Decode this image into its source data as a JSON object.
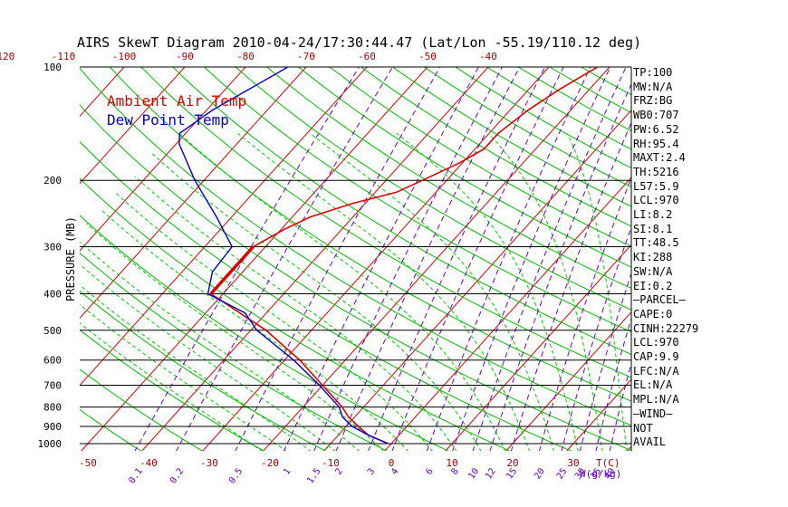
{
  "chart_data": {
    "type": "line",
    "title": "AIRS SkewT Diagram 2010-04-24/17:30:44.47 (Lat/Lon -55.19/110.12 deg)",
    "ylabel": "PRESSURE (MB)",
    "pressure_ticks": [
      100,
      200,
      300,
      400,
      500,
      600,
      700,
      800,
      900,
      1000
    ],
    "bottom_temp_ticks": [
      -50,
      -40,
      -30,
      -20,
      -10,
      0,
      10,
      20,
      30
    ],
    "bottom_temp_unit": "T(C)",
    "top_temp_ticks": [
      -120,
      -110,
      -100,
      -90,
      -80,
      -70,
      -60,
      -50,
      -40
    ],
    "mixing_ratio_ticks": [
      "0.1",
      "0.2",
      "0.5",
      "1",
      "1.5",
      "2",
      "3",
      "4",
      "6",
      "8",
      "10",
      "12",
      "15",
      "20",
      "25",
      "30",
      "35",
      "40"
    ],
    "mixing_ratio_unit": "W(g/kg)",
    "legend": {
      "temp_label": "Ambient Air Temp",
      "dew_label": "Dew Point Temp",
      "temp_color": "#dd0000",
      "dew_color": "#0000cc"
    },
    "series": [
      {
        "name": "Ambient Air Temp",
        "pressure": [
          1000,
          950,
          900,
          850,
          800,
          700,
          600,
          500,
          400,
          350,
          300,
          270,
          250,
          230,
          215,
          200,
          180,
          165,
          150,
          130,
          115,
          100
        ],
        "temp": [
          -0.5,
          -5,
          -8,
          -11,
          -13.5,
          -20,
          -27.5,
          -37.5,
          -52,
          -52,
          -52,
          -49.5,
          -47,
          -42,
          -36.5,
          -34,
          -30.5,
          -28.5,
          -28.5,
          -27,
          -25,
          -22
        ]
      },
      {
        "name": "Dew Point Temp",
        "pressure": [
          1000,
          950,
          900,
          850,
          800,
          700,
          600,
          500,
          450,
          400,
          350,
          300,
          250,
          200,
          160,
          150,
          130,
          100
        ],
        "temp": [
          -0.5,
          -5,
          -9,
          -12,
          -14,
          -20.5,
          -28.5,
          -39,
          -43.5,
          -52.5,
          -55,
          -55.5,
          -62.5,
          -71.5,
          -79.5,
          -81,
          -79,
          -73
        ]
      }
    ],
    "indices": [
      "TP:100",
      "MW:N/A",
      "FRZ:BG",
      "WB0:707",
      "PW:6.52",
      "RH:95.4",
      "MAXT:2.4",
      "TH:5216",
      "L57:5.9",
      "LCL:970",
      "LI:8.2",
      "SI:8.1",
      "TT:48.5",
      "KI:288",
      "SW:N/A",
      "EI:0.2",
      "—PARCEL—",
      "CAPE:0",
      "CINH:22279",
      "LCL:970",
      "CAP:9.9",
      "LFC:N/A",
      "EL:N/A",
      "MPL:N/A",
      "—WIND—",
      "NOT",
      "AVAIL"
    ],
    "colors": {
      "isotherm": "#dd0000",
      "dry_adiabat": "#00bb00",
      "moist_adiabat": "#00cc00",
      "mixing_ratio": "#6600cc",
      "isobar": "#000000"
    }
  }
}
